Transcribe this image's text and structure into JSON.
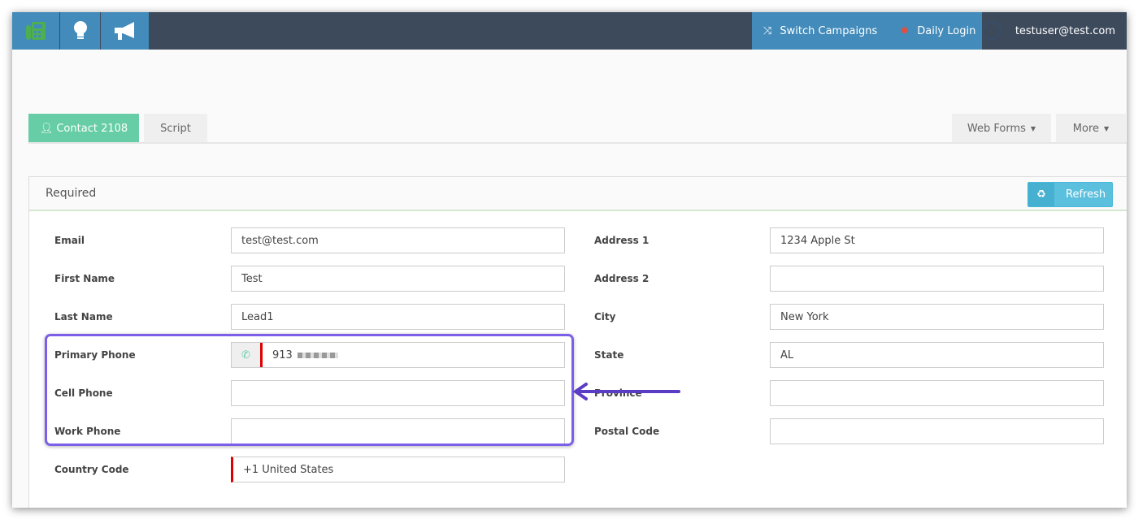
{
  "nav": {
    "icons": [
      "fax-phone-icon",
      "lightbulb-icon",
      "megaphone-icon"
    ],
    "switch_campaigns": "Switch Campaigns",
    "daily_login": "Daily Login",
    "user": "testuser@test.com"
  },
  "tabs": {
    "contact": "Contact 2108",
    "script": "Script",
    "web_forms": "Web Forms",
    "more": "More"
  },
  "panel": {
    "title": "Required",
    "refresh": "Refresh"
  },
  "left_fields": [
    {
      "label": "Email",
      "value": "test@test.com"
    },
    {
      "label": "First Name",
      "value": "Test"
    },
    {
      "label": "Last Name",
      "value": "Lead1"
    },
    {
      "label": "Primary Phone",
      "value": "913"
    },
    {
      "label": "Cell Phone",
      "value": ""
    },
    {
      "label": "Work Phone",
      "value": ""
    },
    {
      "label": "Country Code",
      "value": "+1 United States"
    }
  ],
  "right_fields": [
    {
      "label": "Address 1",
      "value": "1234 Apple St"
    },
    {
      "label": "Address 2",
      "value": ""
    },
    {
      "label": "City",
      "value": "New York"
    },
    {
      "label": "State",
      "value": "AL"
    },
    {
      "label": "Province",
      "value": ""
    },
    {
      "label": "Postal Code",
      "value": ""
    }
  ],
  "colors": {
    "nav_blue": "#428bba",
    "nav_dark": "#3d4a5c",
    "tab_active": "#66cda6",
    "highlight": "#7b5fe8",
    "required_marker": "#e00000"
  }
}
